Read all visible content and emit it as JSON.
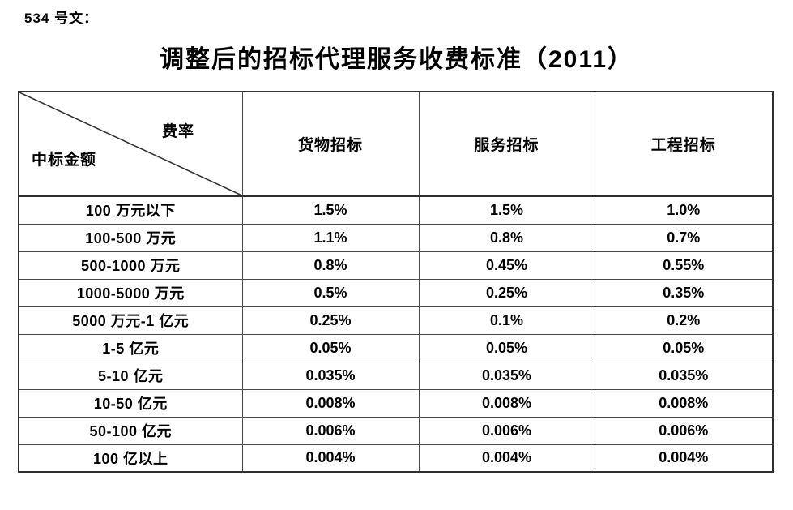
{
  "doc": {
    "number_label": "534 号文：",
    "title": "调整后的招标代理服务收费标准（2011）"
  },
  "table": {
    "corner": {
      "top_right_label": "费率",
      "bottom_left_label": "中标金额"
    },
    "columns": [
      "货物招标",
      "服务招标",
      "工程招标"
    ],
    "rows": [
      {
        "label": "100 万元以下",
        "values": [
          "1.5%",
          "1.5%",
          "1.0%"
        ]
      },
      {
        "label": "100-500 万元",
        "values": [
          "1.1%",
          "0.8%",
          "0.7%"
        ]
      },
      {
        "label": "500-1000 万元",
        "values": [
          "0.8%",
          "0.45%",
          "0.55%"
        ]
      },
      {
        "label": "1000-5000 万元",
        "values": [
          "0.5%",
          "0.25%",
          "0.35%"
        ]
      },
      {
        "label": "5000 万元-1 亿元",
        "values": [
          "0.25%",
          "0.1%",
          "0.2%"
        ]
      },
      {
        "label": "1-5 亿元",
        "values": [
          "0.05%",
          "0.05%",
          "0.05%"
        ]
      },
      {
        "label": "5-10 亿元",
        "values": [
          "0.035%",
          "0.035%",
          "0.035%"
        ]
      },
      {
        "label": "10-50 亿元",
        "values": [
          "0.008%",
          "0.008%",
          "0.008%"
        ]
      },
      {
        "label": "50-100 亿元",
        "values": [
          "0.006%",
          "0.006%",
          "0.006%"
        ]
      },
      {
        "label": "100 亿以上",
        "values": [
          "0.004%",
          "0.004%",
          "0.004%"
        ]
      }
    ],
    "colors": {
      "text": "#000000",
      "border_inner": "#4a4a4a",
      "border_outer": "#2f2f2f",
      "background": "#ffffff"
    }
  }
}
